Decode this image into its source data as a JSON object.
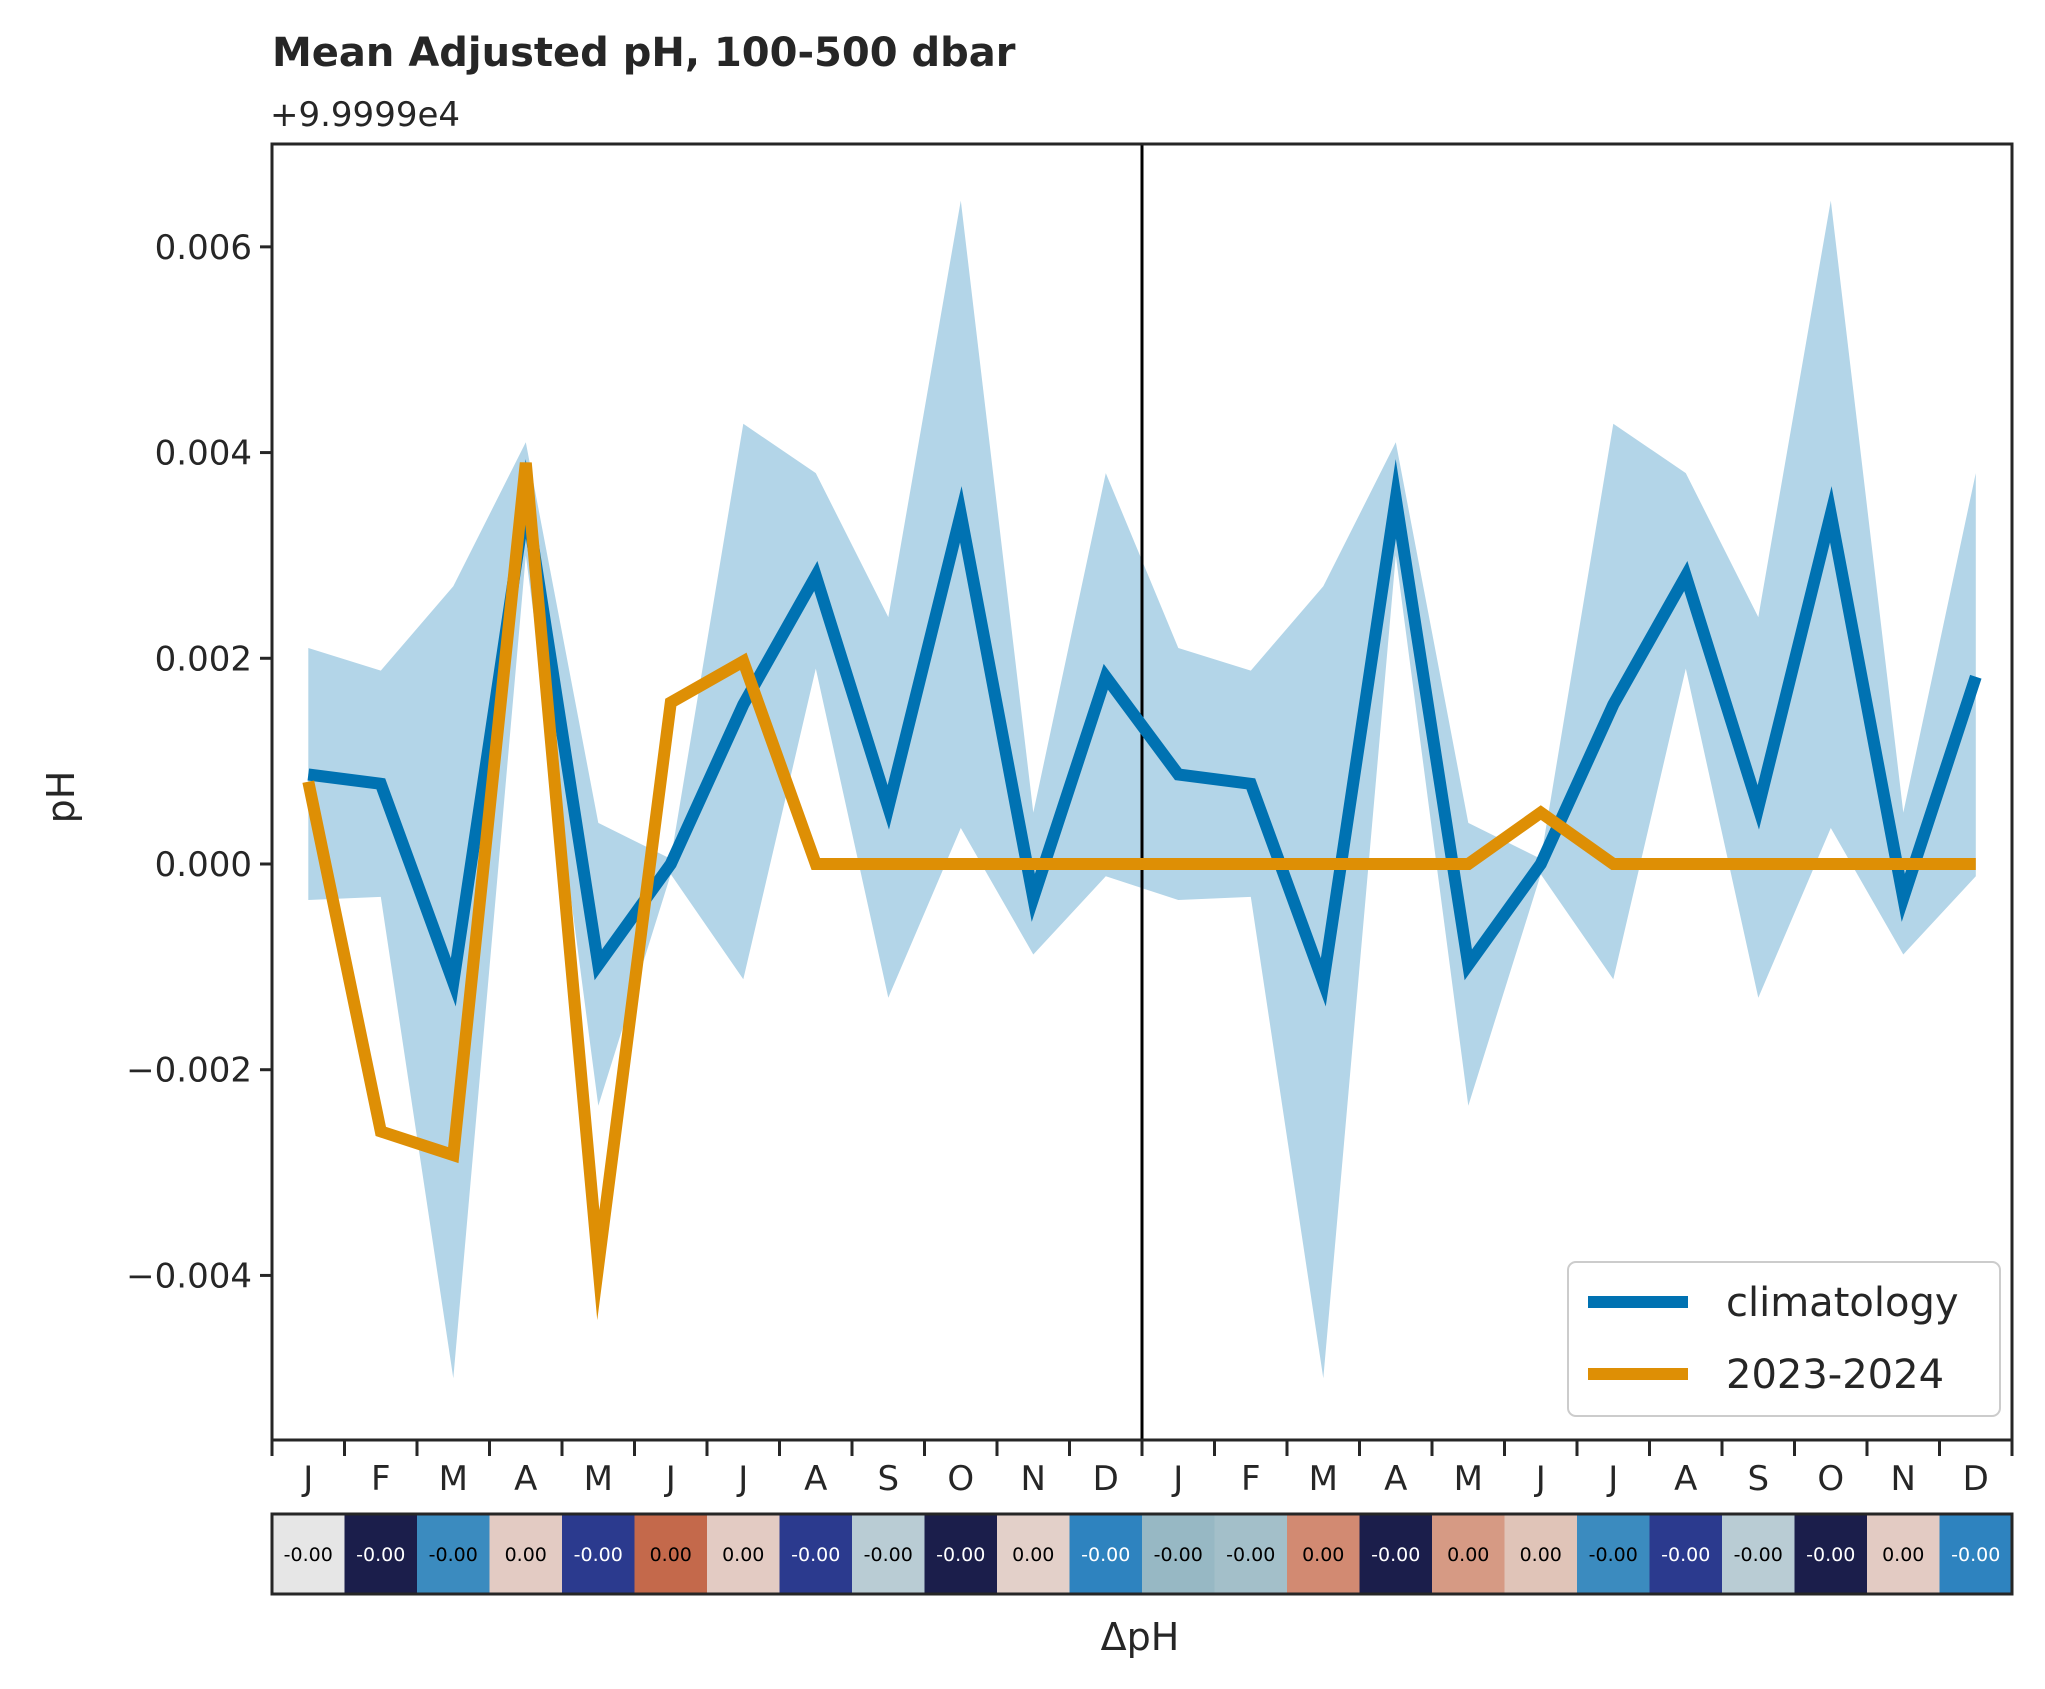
{
  "chart_data": {
    "type": "line",
    "title": "Mean Adjusted pH, 100-500 dbar",
    "offset_label": "+9.9999e4",
    "ylabel": "pH",
    "xlabel": "ΔpH",
    "ylim": [
      -0.0056,
      0.007
    ],
    "yticks": [
      -0.004,
      -0.002,
      0.0,
      0.002,
      0.004,
      0.006
    ],
    "ytick_labels": [
      "−0.004",
      "−0.002",
      "0.000",
      "0.002",
      "0.004",
      "0.006"
    ],
    "categories": [
      "J",
      "F",
      "M",
      "A",
      "M",
      "J",
      "J",
      "A",
      "S",
      "O",
      "N",
      "D",
      "J",
      "F",
      "M",
      "A",
      "M",
      "J",
      "J",
      "A",
      "S",
      "O",
      "N",
      "D"
    ],
    "series": [
      {
        "name": "climatology",
        "color": "#0072b2",
        "values": [
          0.00087,
          0.00078,
          -0.00115,
          0.00355,
          -0.00098,
          0.0,
          0.00155,
          0.0028,
          0.00055,
          0.0034,
          -0.00033,
          0.00182,
          0.00087,
          0.00078,
          -0.00115,
          0.00355,
          -0.00098,
          0.0,
          0.00155,
          0.0028,
          0.00055,
          0.0034,
          -0.00033,
          0.00182
        ]
      },
      {
        "name": "2023-2024",
        "color": "#de8f05",
        "values": [
          0.0008,
          -0.0026,
          -0.00283,
          0.0039,
          -0.0039,
          0.00157,
          0.00197,
          0.0,
          0.0,
          0.0,
          0.0,
          0.0,
          0.0,
          0.0,
          0.0,
          0.0,
          0.0,
          0.0005,
          0.0,
          0.0,
          0.0,
          0.0,
          0.0,
          0.0
        ]
      }
    ],
    "band": {
      "color": "#b3d5e8",
      "upper": [
        0.0021,
        0.00188,
        0.0027,
        0.0041,
        0.0004,
        5e-05,
        0.00428,
        0.0038,
        0.0024,
        0.00645,
        0.0005,
        0.0038,
        0.0021,
        0.00188,
        0.0027,
        0.0041,
        0.0004,
        5e-05,
        0.00428,
        0.0038,
        0.0024,
        0.00645,
        0.0005,
        0.0038
      ],
      "lower": [
        -0.00035,
        -0.00032,
        -0.005,
        0.003,
        -0.00235,
        -0.0001,
        -0.00112,
        0.0019,
        -0.0013,
        0.00035,
        -0.00088,
        -0.00012,
        -0.00035,
        -0.00032,
        -0.005,
        0.003,
        -0.00235,
        -0.0001,
        -0.00112,
        0.0019,
        -0.0013,
        0.00035,
        -0.00088,
        -0.00012
      ]
    },
    "vline_index": 11.5,
    "legend": "lower-right",
    "grid": false,
    "delta_strip": {
      "labels": [
        "-0.00",
        "-0.00",
        "-0.00",
        "0.00",
        "-0.00",
        "0.00",
        "0.00",
        "-0.00",
        "-0.00",
        "-0.00",
        "0.00",
        "-0.00",
        "-0.00",
        "-0.00",
        "0.00",
        "-0.00",
        "0.00",
        "0.00",
        "-0.00",
        "-0.00",
        "-0.00",
        "-0.00",
        "0.00",
        "-0.00"
      ],
      "colors": [
        "#e6e6e6",
        "#1b1e4b",
        "#3b8bbf",
        "#e3cbc3",
        "#2b3a8e",
        "#c4694b",
        "#e3cbc3",
        "#2b3a8e",
        "#b9ccd4",
        "#1b1e4b",
        "#e3d0c9",
        "#2e83bf",
        "#97b8c4",
        "#a3bfc9",
        "#d28a72",
        "#1b1e4b",
        "#d69a84",
        "#e0c4b8",
        "#3b8bbf",
        "#2b3a8e",
        "#b9ccd4",
        "#1b1e4b",
        "#e3cbc3",
        "#2e83bf"
      ],
      "text_colors": [
        "#000000",
        "#ffffff",
        "#000000",
        "#000000",
        "#ffffff",
        "#000000",
        "#000000",
        "#ffffff",
        "#000000",
        "#ffffff",
        "#000000",
        "#ffffff",
        "#000000",
        "#000000",
        "#000000",
        "#ffffff",
        "#000000",
        "#000000",
        "#000000",
        "#ffffff",
        "#000000",
        "#ffffff",
        "#000000",
        "#ffffff"
      ]
    }
  }
}
